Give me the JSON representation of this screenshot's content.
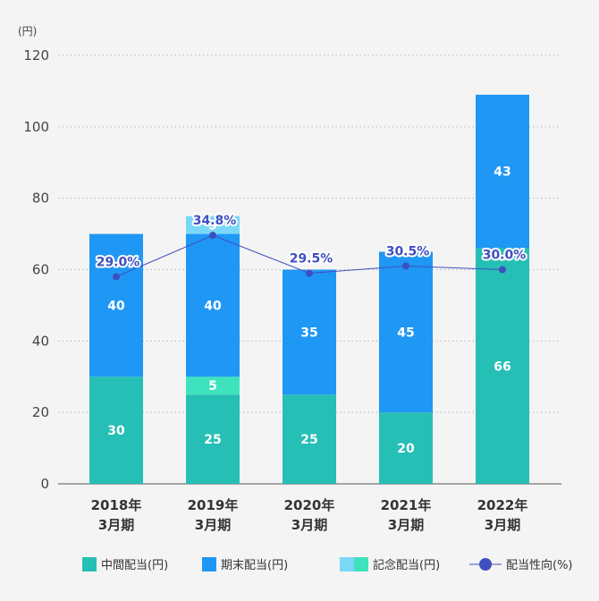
{
  "chart_data": {
    "type": "bar",
    "stacked": true,
    "y_unit": "(円)",
    "ylim": [
      0,
      120
    ],
    "yticks": [
      0,
      20,
      40,
      60,
      80,
      100,
      120
    ],
    "grid": true,
    "legend_position": "bottom",
    "categories": [
      [
        "2018年",
        "3月期"
      ],
      [
        "2019年",
        "3月期"
      ],
      [
        "2020年",
        "3月期"
      ],
      [
        "2021年",
        "3月期"
      ],
      [
        "2022年",
        "3月期"
      ]
    ],
    "series": [
      {
        "name": "中間配当(円)",
        "color": "#26bfb5",
        "values": [
          30,
          25,
          25,
          20,
          66
        ]
      },
      {
        "name": "記念配当(円)",
        "part": "mid",
        "color": "#3ee3bd",
        "values": [
          0,
          5,
          0,
          0,
          0
        ]
      },
      {
        "name": "期末配当(円)",
        "color": "#1f97f5",
        "values": [
          40,
          40,
          35,
          45,
          43
        ]
      },
      {
        "name": "記念配当(円)",
        "part": "top",
        "color": "#7ad8f7",
        "values": [
          0,
          5,
          0,
          0,
          0
        ]
      }
    ],
    "line_series": {
      "name": "配当性向(%)",
      "color": "#3f4fc0",
      "values": [
        29.0,
        34.8,
        29.5,
        30.5,
        30.0
      ],
      "labels": [
        "29.0%",
        "34.8%",
        "29.5%",
        "30.5%",
        "30.0%"
      ]
    },
    "legend": [
      {
        "label": "中間配当(円)",
        "colors": [
          "#26bfb5"
        ],
        "kind": "box"
      },
      {
        "label": "期末配当(円)",
        "colors": [
          "#1f97f5"
        ],
        "kind": "box"
      },
      {
        "label": "記念配当(円)",
        "colors": [
          "#7ad8f7",
          "#3ee3bd"
        ],
        "kind": "box2"
      },
      {
        "label": "配当性向(%)",
        "colors": [
          "#3f4fc0"
        ],
        "kind": "line"
      }
    ]
  }
}
